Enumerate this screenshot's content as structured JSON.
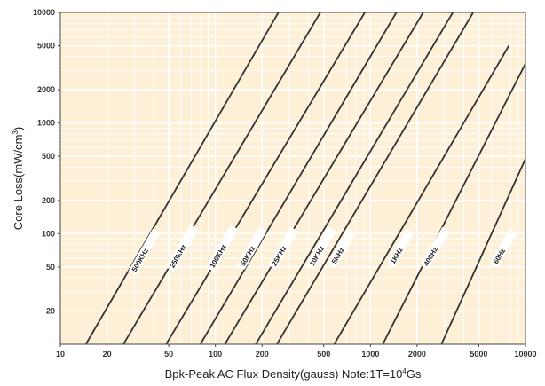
{
  "chart_data": {
    "type": "line",
    "title": "",
    "xlabel": "Bpk-Peak AC Flux Density(gauss) Note:1T=10",
    "xlabel_sup": "4",
    "xlabel_tail": "Gs",
    "ylabel": "Core Loss(mW/cm",
    "ylabel_sup": "3",
    "ylabel_tail": ")",
    "x_scale": "log",
    "y_scale": "log",
    "xlim": [
      10,
      10000
    ],
    "ylim": [
      10,
      10000
    ],
    "x_ticks": [
      10,
      20,
      50,
      100,
      200,
      500,
      1000,
      2000,
      5000,
      10000
    ],
    "x_tick_labels": [
      "10",
      "20",
      "50",
      "100",
      "200",
      "500",
      "1000",
      "2000",
      "5000",
      "10000"
    ],
    "y_ticks": [
      20,
      50,
      100,
      200,
      500,
      1000,
      2000,
      5000,
      10000
    ],
    "y_tick_labels": [
      "20",
      "50",
      "100",
      "200",
      "500",
      "1000",
      "2000",
      "5000",
      "10000"
    ],
    "grid": true,
    "background_color": "#fdf0d6",
    "grid_color": "#ffffff",
    "line_color": "#333333",
    "series": [
      {
        "name": "500KHz",
        "x": [
          14.6,
          255
        ],
        "y": [
          10,
          10000
        ]
      },
      {
        "name": "250KHz",
        "x": [
          25.5,
          475
        ],
        "y": [
          10,
          10000
        ]
      },
      {
        "name": "100KHz",
        "x": [
          48.1,
          920
        ],
        "y": [
          10,
          10000
        ]
      },
      {
        "name": "50KHz",
        "x": [
          80,
          1470
        ],
        "y": [
          10,
          10000
        ]
      },
      {
        "name": "25KHz",
        "x": [
          115,
          2190
        ],
        "y": [
          10,
          10000
        ]
      },
      {
        "name": "10KHz",
        "x": [
          182,
          3400
        ],
        "y": [
          10,
          10000
        ]
      },
      {
        "name": "5KHz",
        "x": [
          249,
          4600
        ],
        "y": [
          10,
          10000
        ]
      },
      {
        "name": "1KHz",
        "x": [
          584,
          7820
        ],
        "y": [
          10,
          5000
        ]
      },
      {
        "name": "400Hz",
        "x": [
          1200,
          10000
        ],
        "y": [
          10,
          3450
        ]
      },
      {
        "name": "60Hz",
        "x": [
          2870,
          10000
        ],
        "y": [
          10,
          475
        ]
      }
    ],
    "label_positions": [
      {
        "series": "500KHz",
        "x": 33,
        "y": 60
      },
      {
        "series": "250KHz",
        "x": 58,
        "y": 65
      },
      {
        "series": "100KHz",
        "x": 105,
        "y": 65
      },
      {
        "series": "50KHz",
        "x": 163,
        "y": 65
      },
      {
        "series": "25KHz",
        "x": 260,
        "y": 65
      },
      {
        "series": "10KHz",
        "x": 455,
        "y": 65
      },
      {
        "series": "5KHz",
        "x": 620,
        "y": 65
      },
      {
        "series": "1KHz",
        "x": 1480,
        "y": 65
      },
      {
        "series": "400Hz",
        "x": 2480,
        "y": 65
      },
      {
        "series": "60Hz",
        "x": 6850,
        "y": 65
      }
    ]
  }
}
